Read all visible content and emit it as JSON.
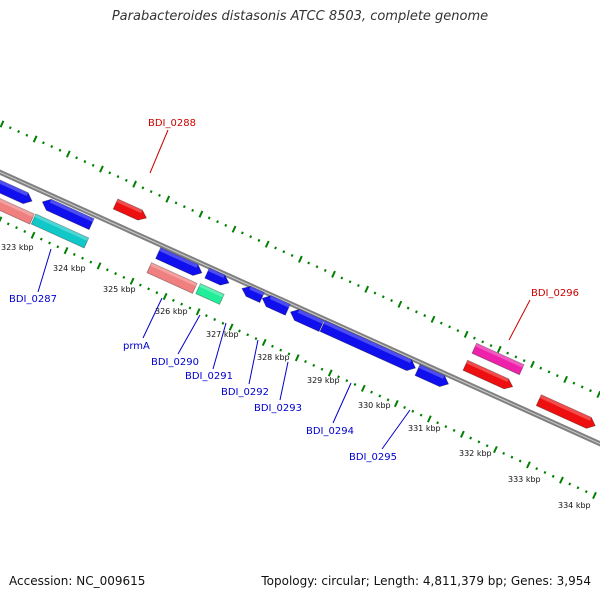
{
  "title": "Parabacteroides distasonis ATCC 8503, complete genome",
  "footer": {
    "accession": "Accession: NC_009615",
    "summary": "Topology: circular; Length: 4,811,379 bp; Genes: 3,954"
  },
  "colors": {
    "backbone": "#808080",
    "dots": "#008000",
    "label_forward": "#cc0000",
    "label_reverse": "#0000cc",
    "gene_blue": "#1010ee",
    "gene_red": "#ee1010",
    "gene_pink": "#f08080",
    "gene_cyan": "#10c8c8",
    "gene_magenta": "#ee22aa",
    "gene_green": "#22ee99"
  },
  "scale_labels": [
    "323 kbp",
    "324 kbp",
    "325 kbp",
    "326 kbp",
    "327 kbp",
    "328 kbp",
    "329 kbp",
    "330 kbp",
    "331 kbp",
    "332 kbp",
    "333 kbp",
    "334 kbp"
  ],
  "gene_labels": [
    {
      "id": "g0287",
      "text": "BDI_0287",
      "color": "label_reverse"
    },
    {
      "id": "gprmA",
      "text": "prmA",
      "color": "label_reverse"
    },
    {
      "id": "g0290",
      "text": "BDI_0290",
      "color": "label_reverse"
    },
    {
      "id": "g0291",
      "text": "BDI_0291",
      "color": "label_reverse"
    },
    {
      "id": "g0292",
      "text": "BDI_0292",
      "color": "label_reverse"
    },
    {
      "id": "g0293",
      "text": "BDI_0293",
      "color": "label_reverse"
    },
    {
      "id": "g0294",
      "text": "BDI_0294",
      "color": "label_reverse"
    },
    {
      "id": "g0295",
      "text": "BDI_0295",
      "color": "label_reverse"
    },
    {
      "id": "g0288",
      "text": "BDI_0288",
      "color": "label_forward"
    },
    {
      "id": "g0296",
      "text": "BDI_0296",
      "color": "label_forward"
    }
  ]
}
